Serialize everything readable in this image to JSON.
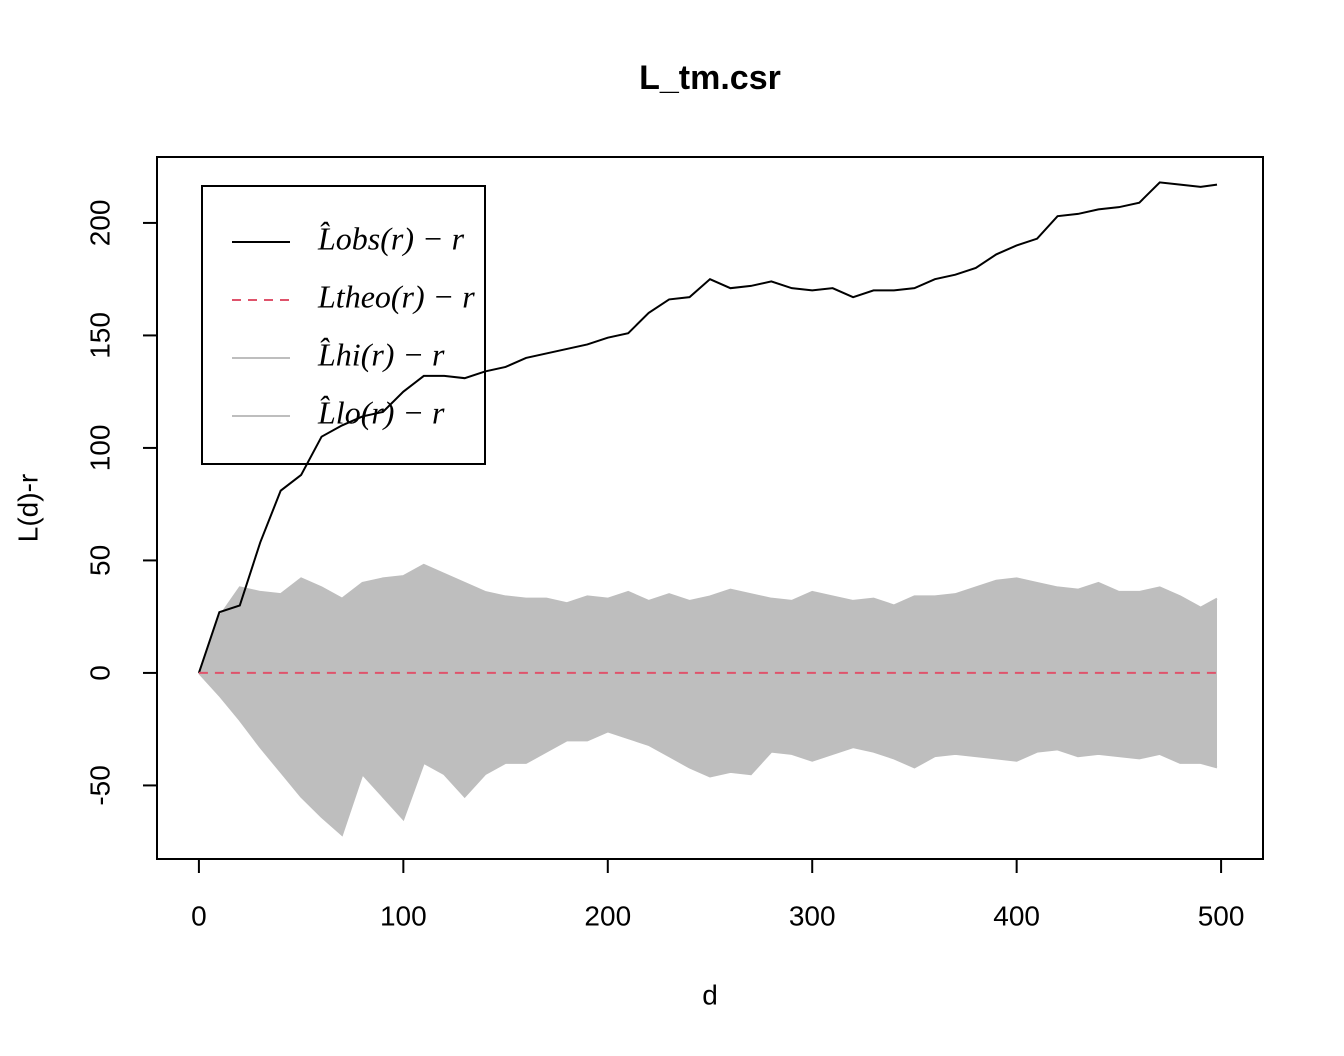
{
  "chart_data": {
    "type": "line",
    "title": "L_tm.csr",
    "x_label": "d",
    "y_label": "L(d)-r",
    "x": [
      0,
      10,
      20,
      30,
      40,
      50,
      60,
      70,
      80,
      90,
      100,
      110,
      120,
      130,
      140,
      150,
      160,
      170,
      180,
      190,
      200,
      210,
      220,
      230,
      240,
      250,
      260,
      270,
      280,
      290,
      300,
      310,
      320,
      330,
      340,
      350,
      360,
      370,
      380,
      390,
      400,
      410,
      420,
      430,
      440,
      450,
      460,
      470,
      480,
      490,
      498
    ],
    "series": [
      {
        "name": "L̂obs(r) − r",
        "color": "#000000",
        "dash": false,
        "values": [
          0,
          27,
          30,
          58,
          81,
          88,
          105,
          110,
          114,
          116,
          125,
          132,
          132,
          131,
          134,
          136,
          140,
          142,
          144,
          146,
          149,
          151,
          160,
          166,
          167,
          175,
          171,
          172,
          174,
          171,
          170,
          171,
          167,
          170,
          170,
          171,
          175,
          177,
          180,
          186,
          190,
          193,
          203,
          204,
          206,
          207,
          209,
          218,
          217,
          216,
          217
        ]
      },
      {
        "name": "Ltheo(r) − r",
        "color": "#DF536B",
        "dash": true,
        "values": [
          0,
          0,
          0,
          0,
          0,
          0,
          0,
          0,
          0,
          0,
          0,
          0,
          0,
          0,
          0,
          0,
          0,
          0,
          0,
          0,
          0,
          0,
          0,
          0,
          0,
          0,
          0,
          0,
          0,
          0,
          0,
          0,
          0,
          0,
          0,
          0,
          0,
          0,
          0,
          0,
          0,
          0,
          0,
          0,
          0,
          0,
          0,
          0,
          0,
          0,
          0
        ]
      },
      {
        "name": "L̂hi(r) − r",
        "color": "#BEBEBE",
        "dash": false,
        "values": [
          0,
          25,
          38,
          36,
          35,
          42,
          38,
          33,
          40,
          42,
          43,
          48,
          44,
          40,
          36,
          34,
          33,
          33,
          31,
          34,
          33,
          36,
          32,
          35,
          32,
          34,
          37,
          35,
          33,
          32,
          36,
          34,
          32,
          33,
          30,
          34,
          34,
          35,
          38,
          41,
          42,
          40,
          38,
          37,
          40,
          36,
          36,
          38,
          34,
          29,
          33
        ]
      },
      {
        "name": "L̂lo(r) − r",
        "color": "#BEBEBE",
        "dash": false,
        "values": [
          0,
          -10,
          -21,
          -33,
          -44,
          -55,
          -64,
          -72,
          -45,
          -55,
          -65,
          -40,
          -45,
          -55,
          -45,
          -40,
          -40,
          -35,
          -30,
          -30,
          -26,
          -29,
          -32,
          -37,
          -42,
          -46,
          -44,
          -45,
          -35,
          -36,
          -39,
          -36,
          -33,
          -35,
          -38,
          -42,
          -37,
          -36,
          -37,
          -38,
          -39,
          -35,
          -34,
          -37,
          -36,
          -37,
          -38,
          -36,
          -40,
          -40,
          -42
        ]
      }
    ],
    "envelope": true,
    "xlim": [
      -20.5,
      520.5
    ],
    "xticks": [
      0,
      100,
      200,
      300,
      400,
      500
    ],
    "ylim": [
      -82.7,
      229.3
    ],
    "yticks": [
      -50,
      0,
      50,
      100,
      150,
      200
    ],
    "legend": "top-left"
  }
}
